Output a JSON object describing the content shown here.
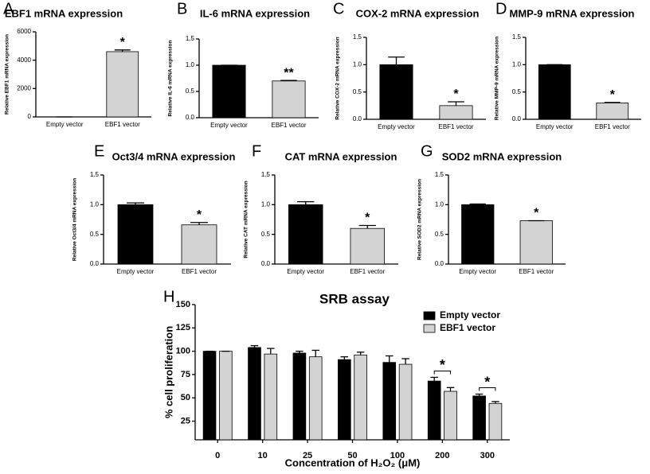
{
  "chart_data": [
    {
      "type": "bar",
      "panel": "A",
      "title": "EBF1 mRNA expression",
      "ylabel": "Relative EBF1 mRNA expression",
      "categories": [
        "Empty vector",
        "EBF1 vector"
      ],
      "values": [
        1,
        4600
      ],
      "errors": [
        0,
        120
      ],
      "colors": [
        "#000000",
        "#d3d3d3"
      ],
      "significance": [
        null,
        "*"
      ],
      "ylim": [
        0,
        6000
      ],
      "yticks": [
        0,
        2000,
        4000,
        6000
      ]
    },
    {
      "type": "bar",
      "panel": "B",
      "title": "IL-6 mRNA expression",
      "ylabel": "Relative IL-6 mRNA expression",
      "categories": [
        "Empty vector",
        "EBF1 vector"
      ],
      "values": [
        1.0,
        0.7
      ],
      "errors": [
        0,
        0.01
      ],
      "colors": [
        "#000000",
        "#d3d3d3"
      ],
      "significance": [
        null,
        "**"
      ],
      "ylim": [
        0,
        1.5
      ],
      "yticks": [
        {
          "value": 0,
          "label": "0.0"
        },
        0.5,
        {
          "value": 1,
          "label": "1.0"
        },
        1.5
      ]
    },
    {
      "type": "bar",
      "panel": "C",
      "title": "COX-2 mRNA expression",
      "ylabel": "Relative COX-2 mRNA expression",
      "categories": [
        "Empty vector",
        "EBF1 vector"
      ],
      "values": [
        1.0,
        0.25
      ],
      "errors": [
        0.14,
        0.07
      ],
      "colors": [
        "#000000",
        "#d3d3d3"
      ],
      "significance": [
        null,
        "*"
      ],
      "ylim": [
        0,
        1.5
      ],
      "yticks": [
        {
          "value": 0,
          "label": "0.0"
        },
        0.5,
        {
          "value": 1,
          "label": "1.0"
        },
        1.5
      ]
    },
    {
      "type": "bar",
      "panel": "D",
      "title": "MMP-9 mRNA expression",
      "ylabel": "Relative MMP-9 mRNA expression",
      "categories": [
        "Empty vector",
        "EBF1 vector"
      ],
      "values": [
        1.0,
        0.3
      ],
      "errors": [
        0,
        0.01
      ],
      "colors": [
        "#000000",
        "#d3d3d3"
      ],
      "significance": [
        null,
        "*"
      ],
      "ylim": [
        0,
        1.5
      ],
      "yticks": [
        {
          "value": 0,
          "label": "0.0"
        },
        0.5,
        {
          "value": 1,
          "label": "1.0"
        },
        1.5
      ]
    },
    {
      "type": "bar",
      "panel": "E",
      "title": "Oct3/4 mRNA expression",
      "ylabel": "Relative Oct3/4 mRNA expression",
      "categories": [
        "Empty vector",
        "EBF1 vector"
      ],
      "values": [
        1.0,
        0.66
      ],
      "errors": [
        0.03,
        0.04
      ],
      "colors": [
        "#000000",
        "#d3d3d3"
      ],
      "significance": [
        null,
        "*"
      ],
      "ylim": [
        0,
        1.5
      ],
      "yticks": [
        {
          "value": 0,
          "label": "0.0"
        },
        0.5,
        {
          "value": 1,
          "label": "1.0"
        },
        1.5
      ]
    },
    {
      "type": "bar",
      "panel": "F",
      "title": "CAT mRNA expression",
      "ylabel": "Relative CAT mRNA expression",
      "categories": [
        "Empty vector",
        "EBF1 vector"
      ],
      "values": [
        1.0,
        0.6
      ],
      "errors": [
        0.05,
        0.05
      ],
      "colors": [
        "#000000",
        "#d3d3d3"
      ],
      "significance": [
        null,
        "*"
      ],
      "ylim": [
        0,
        1.5
      ],
      "yticks": [
        {
          "value": 0,
          "label": "0.0"
        },
        0.5,
        {
          "value": 1,
          "label": "1.0"
        },
        1.5
      ]
    },
    {
      "type": "bar",
      "panel": "G",
      "title": "SOD2 mRNA expression",
      "ylabel": "Relative SOD2 mRNA expression",
      "categories": [
        "Empty vector",
        "EBF1 vector"
      ],
      "values": [
        1.0,
        0.73
      ],
      "errors": [
        0.01,
        0
      ],
      "colors": [
        "#000000",
        "#d3d3d3"
      ],
      "significance": [
        null,
        "*"
      ],
      "ylim": [
        0,
        1.5
      ],
      "yticks": [
        {
          "value": 0,
          "label": "0.0"
        },
        0.5,
        {
          "value": 1,
          "label": "1.0"
        },
        1.5
      ]
    },
    {
      "type": "bar",
      "panel": "H",
      "title": "SRB assay",
      "ylabel": "% cell proliferation",
      "xlabel": "Concentration of H₂O₂ (μM)",
      "categories": [
        "0",
        "10",
        "25",
        "50",
        "100",
        "200",
        "300"
      ],
      "series": [
        {
          "name": "Empty vector",
          "color": "#000000",
          "values": [
            100,
            104,
            98,
            91,
            88,
            68,
            52
          ],
          "errors": [
            0,
            2,
            2,
            3,
            7,
            4,
            2
          ]
        },
        {
          "name": "EBF1 vector",
          "color": "#d3d3d3",
          "values": [
            100,
            97,
            94,
            96,
            86,
            57,
            44
          ],
          "errors": [
            0,
            6,
            7,
            3,
            6,
            4,
            2
          ]
        }
      ],
      "significance": [
        null,
        null,
        null,
        null,
        null,
        "*",
        "*"
      ],
      "ylim": [
        5,
        150
      ],
      "yticks": [
        25,
        50,
        75,
        100,
        125,
        150
      ],
      "legend": "top-right"
    }
  ]
}
